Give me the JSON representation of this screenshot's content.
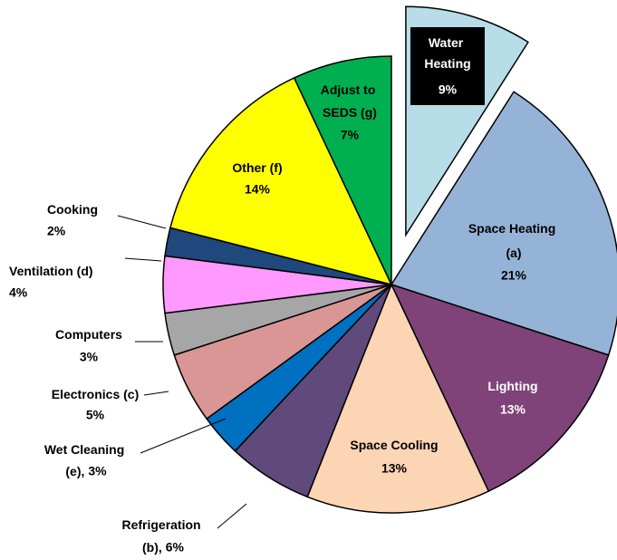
{
  "chart_data": {
    "type": "pie",
    "categories": [
      "Water Heating",
      "Space Heating (a)",
      "Lighting",
      "Space Cooling",
      "Refrigeration (b),",
      "Wet Cleaning (e),",
      "Electronics (c)",
      "Computers",
      "Ventilation (d)",
      "Cooking",
      "Other (f)",
      "Adjust to SEDS (g)"
    ],
    "values": [
      9,
      21,
      13,
      13,
      6,
      3,
      5,
      3,
      4,
      2,
      14,
      7
    ],
    "value_labels": [
      "9%",
      "21%",
      "13%",
      "13%",
      "6%",
      "3%",
      "5%",
      "3%",
      "4%",
      "2%",
      "14%",
      "7%"
    ],
    "colors": [
      "#b7dde8",
      "#95b3d7",
      "#7f4379",
      "#fcd5b5",
      "#604a7b",
      "#0070c0",
      "#d99694",
      "#a6a6a6",
      "#ff99ff",
      "#1f497d",
      "#ffff00",
      "#00b050"
    ]
  }
}
